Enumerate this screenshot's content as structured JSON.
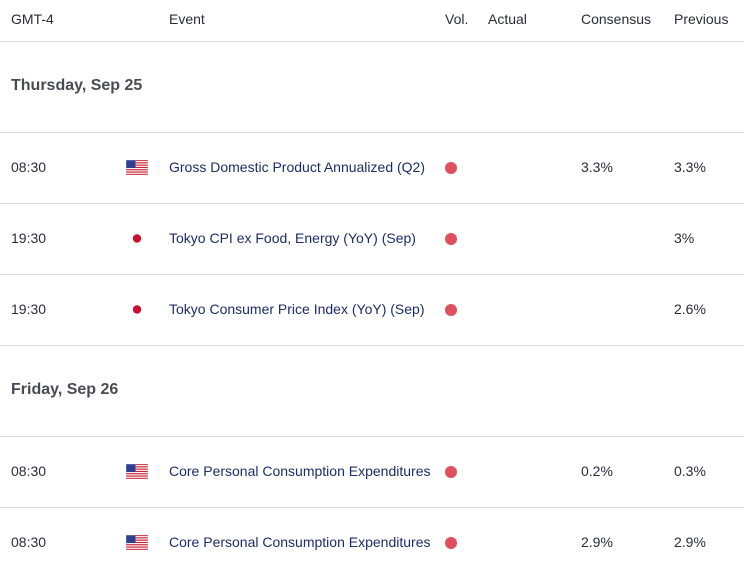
{
  "header": {
    "timezone": "GMT-4",
    "event": "Event",
    "vol": "Vol.",
    "actual": "Actual",
    "consensus": "Consensus",
    "previous": "Previous"
  },
  "days": [
    {
      "label": "Thursday, Sep 25"
    },
    {
      "label": "Friday, Sep 26"
    }
  ],
  "events": [
    {
      "time": "08:30",
      "flag": "us-flag-icon",
      "event": "Gross Domestic Product Annualized (Q2)",
      "vol": "high",
      "actual": "",
      "consensus": "3.3%",
      "previous": "3.3%"
    },
    {
      "time": "19:30",
      "flag": "japan-flag-icon",
      "event": "Tokyo CPI ex Food, Energy (YoY) (Sep)",
      "vol": "high",
      "actual": "",
      "consensus": "",
      "previous": "3%"
    },
    {
      "time": "19:30",
      "flag": "japan-flag-icon",
      "event": "Tokyo Consumer Price Index (YoY) (Sep)",
      "vol": "high",
      "actual": "",
      "consensus": "",
      "previous": "2.6%"
    },
    {
      "time": "08:30",
      "flag": "us-flag-icon",
      "event": "Core Personal Consumption Expenditures",
      "vol": "high",
      "actual": "",
      "consensus": "0.2%",
      "previous": "0.3%"
    },
    {
      "time": "08:30",
      "flag": "us-flag-icon",
      "event": "Core Personal Consumption Expenditures",
      "vol": "high",
      "actual": "",
      "consensus": "2.9%",
      "previous": "2.9%"
    }
  ],
  "colors": {
    "vol_high": "#e0505c",
    "event_link": "#1d2c6b"
  }
}
